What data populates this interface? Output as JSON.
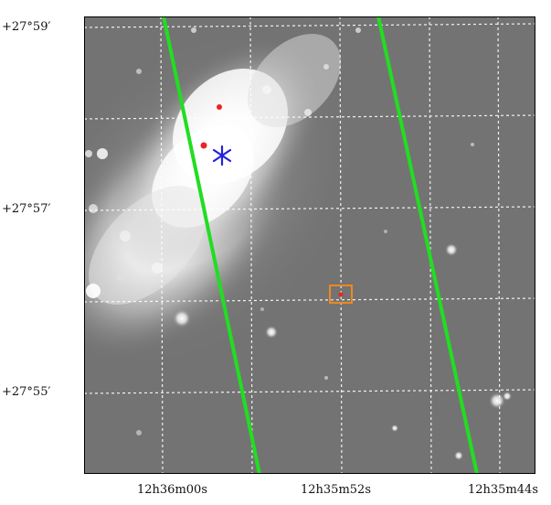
{
  "image": {
    "type": "astronomical sky image",
    "colors": {
      "background": "#777777",
      "grid": "#ffffff",
      "slit": "#22dd22",
      "marker_star": "#2222dd",
      "marker_dot": "#ee2222",
      "box": "#ee8822"
    }
  },
  "axes": {
    "dec_labels": [
      "+27°59′",
      "+27°57′",
      "+27°55′"
    ],
    "ra_labels": [
      "12h36m00s",
      "12h35m52s",
      "12h35m44s"
    ]
  },
  "markers": [
    {
      "name": "blue-asterisk",
      "icon": "asterisk-icon"
    },
    {
      "name": "red-dot-upper",
      "icon": "dot-icon"
    },
    {
      "name": "red-dot-left",
      "icon": "dot-icon"
    },
    {
      "name": "red-dot-boxed",
      "icon": "dot-icon"
    },
    {
      "name": "orange-square",
      "icon": "square-icon"
    }
  ]
}
